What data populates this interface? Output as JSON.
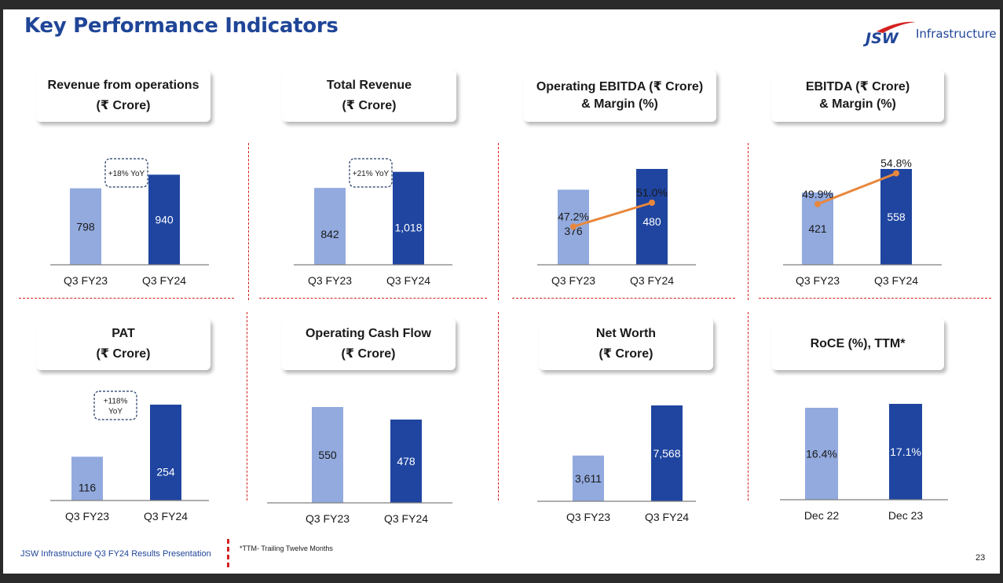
{
  "slide": {
    "title": "Key Performance Indicators",
    "logo_text": "JSW",
    "logo_word": "Infrastructure",
    "footer_left": "JSW Infrastructure Q3 FY24 Results Presentation",
    "footnote": "*TTM- Trailing Twelve Months",
    "page_number": "23"
  },
  "colors": {
    "light_bar": "#92aade",
    "dark_bar": "#1f45a0",
    "line": "#e8873c",
    "divider": "#d42020",
    "title": "#1f4597"
  },
  "panels": [
    {
      "label_line1": "Revenue from operations",
      "label_line2": "(₹ Crore)"
    },
    {
      "label_line1": "Total Revenue",
      "label_line2": "(₹ Crore)"
    },
    {
      "label_line1": "Operating EBITDA (₹ Crore)",
      "label_line2": "& Margin (%)"
    },
    {
      "label_line1": "EBITDA (₹ Crore)",
      "label_line2": "& Margin (%)"
    },
    {
      "label_line1": "PAT",
      "label_line2": "(₹ Crore)"
    },
    {
      "label_line1": "Operating Cash Flow",
      "label_line2": "(₹ Crore)"
    },
    {
      "label_line1": "Net Worth",
      "label_line2": "(₹ Crore)"
    },
    {
      "label_line1": "RoCE (%), TTM*",
      "label_line2": ""
    }
  ],
  "chart_data": [
    {
      "type": "bar",
      "categories": [
        "Q3 FY23",
        "Q3 FY24"
      ],
      "values": [
        798,
        940
      ],
      "value_labels": [
        "798",
        "940"
      ],
      "ylim": [
        0,
        1000
      ],
      "annotation": [
        "+18% YoY"
      ]
    },
    {
      "type": "bar",
      "categories": [
        "Q3 FY23",
        "Q3 FY24"
      ],
      "values": [
        842,
        1018
      ],
      "value_labels": [
        "842",
        "1,018"
      ],
      "ylim": [
        0,
        1050
      ],
      "annotation": [
        "+21% YoY"
      ]
    },
    {
      "type": "bar",
      "categories": [
        "Q3 FY23",
        "Q3 FY24"
      ],
      "values": [
        376,
        480
      ],
      "value_labels": [
        "376",
        "480"
      ],
      "ylim": [
        0,
        480
      ],
      "line_values": [
        47.2,
        51.0
      ],
      "line_labels": [
        "47.2%",
        "51.0%"
      ]
    },
    {
      "type": "bar",
      "categories": [
        "Q3 FY23",
        "Q3 FY24"
      ],
      "values": [
        421,
        558
      ],
      "value_labels": [
        "421",
        "558"
      ],
      "ylim": [
        0,
        558
      ],
      "line_values": [
        49.9,
        54.8
      ],
      "line_labels": [
        "49.9%",
        "54.8%"
      ]
    },
    {
      "type": "bar",
      "categories": [
        "Q3 FY23",
        "Q3 FY24"
      ],
      "values": [
        116,
        254
      ],
      "value_labels": [
        "116",
        "254"
      ],
      "ylim": [
        0,
        254
      ],
      "annotation": [
        "+118%",
        "YoY"
      ]
    },
    {
      "type": "bar",
      "categories": [
        "Q3 FY23",
        "Q3 FY24"
      ],
      "values": [
        550,
        478
      ],
      "value_labels": [
        "550",
        "478"
      ],
      "ylim": [
        0,
        550
      ]
    },
    {
      "type": "bar",
      "categories": [
        "Q3 FY23",
        "Q3 FY24"
      ],
      "values": [
        3611,
        7568
      ],
      "value_labels": [
        "3,611",
        "7,568"
      ],
      "ylim": [
        0,
        7568
      ]
    },
    {
      "type": "bar",
      "categories": [
        "Dec 22",
        "Dec 23"
      ],
      "values": [
        16.4,
        17.1
      ],
      "value_labels": [
        "16.4%",
        "17.1%"
      ],
      "ylim": [
        0,
        17.1
      ]
    }
  ]
}
